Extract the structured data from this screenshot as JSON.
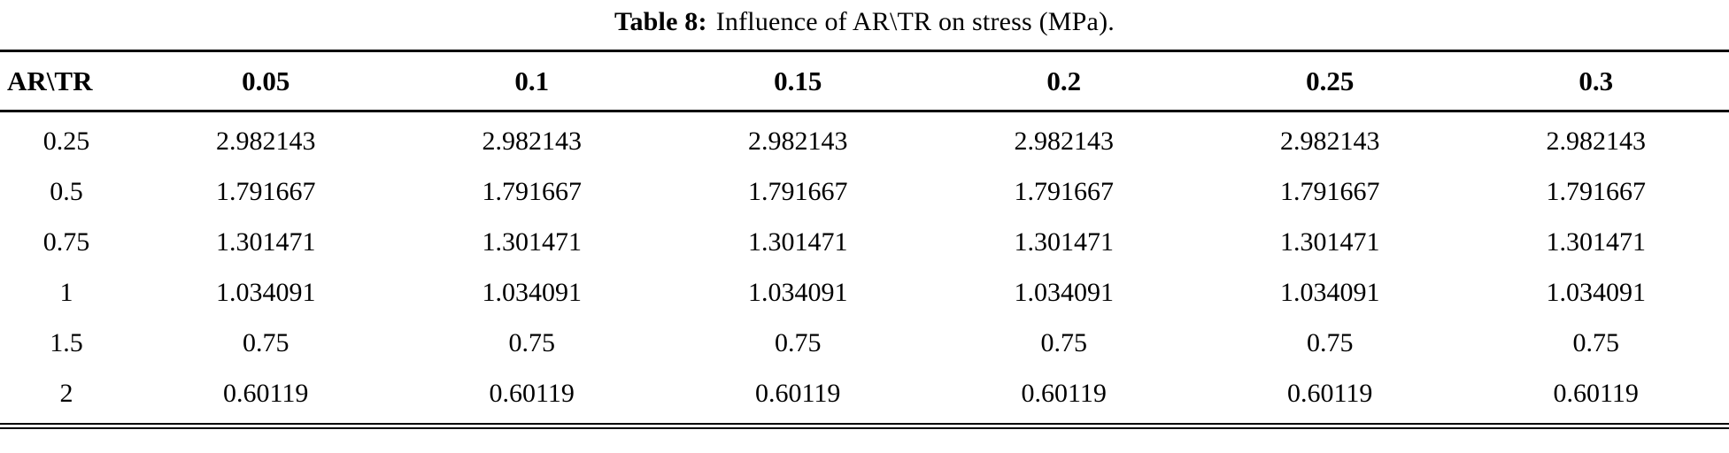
{
  "caption": {
    "label": "Table 8:",
    "text": "Influence of AR\\TR on stress (MPa)."
  },
  "table": {
    "header": [
      "AR\\TR",
      "0.05",
      "0.1",
      "0.15",
      "0.2",
      "0.25",
      "0.3"
    ],
    "rows": [
      [
        "0.25",
        "2.982143",
        "2.982143",
        "2.982143",
        "2.982143",
        "2.982143",
        "2.982143"
      ],
      [
        "0.5",
        "1.791667",
        "1.791667",
        "1.791667",
        "1.791667",
        "1.791667",
        "1.791667"
      ],
      [
        "0.75",
        "1.301471",
        "1.301471",
        "1.301471",
        "1.301471",
        "1.301471",
        "1.301471"
      ],
      [
        "1",
        "1.034091",
        "1.034091",
        "1.034091",
        "1.034091",
        "1.034091",
        "1.034091"
      ],
      [
        "1.5",
        "0.75",
        "0.75",
        "0.75",
        "0.75",
        "0.75",
        "0.75"
      ],
      [
        "2",
        "0.60119",
        "0.60119",
        "0.60119",
        "0.60119",
        "0.60119",
        "0.60119"
      ]
    ]
  },
  "chart_data": {
    "type": "table",
    "title": "Table 8: Influence of AR\\TR on stress (MPa).",
    "row_variable": "AR",
    "column_variable": "TR",
    "columns": [
      0.05,
      0.1,
      0.15,
      0.2,
      0.25,
      0.3
    ],
    "row_labels": [
      0.25,
      0.5,
      0.75,
      1,
      1.5,
      2
    ],
    "series": [
      {
        "name": "0.25",
        "values": [
          2.982143,
          2.982143,
          2.982143,
          2.982143,
          2.982143,
          2.982143
        ]
      },
      {
        "name": "0.5",
        "values": [
          1.791667,
          1.791667,
          1.791667,
          1.791667,
          1.791667,
          1.791667
        ]
      },
      {
        "name": "0.75",
        "values": [
          1.301471,
          1.301471,
          1.301471,
          1.301471,
          1.301471,
          1.301471
        ]
      },
      {
        "name": "1",
        "values": [
          1.034091,
          1.034091,
          1.034091,
          1.034091,
          1.034091,
          1.034091
        ]
      },
      {
        "name": "1.5",
        "values": [
          0.75,
          0.75,
          0.75,
          0.75,
          0.75,
          0.75
        ]
      },
      {
        "name": "2",
        "values": [
          0.60119,
          0.60119,
          0.60119,
          0.60119,
          0.60119,
          0.60119
        ]
      }
    ]
  }
}
